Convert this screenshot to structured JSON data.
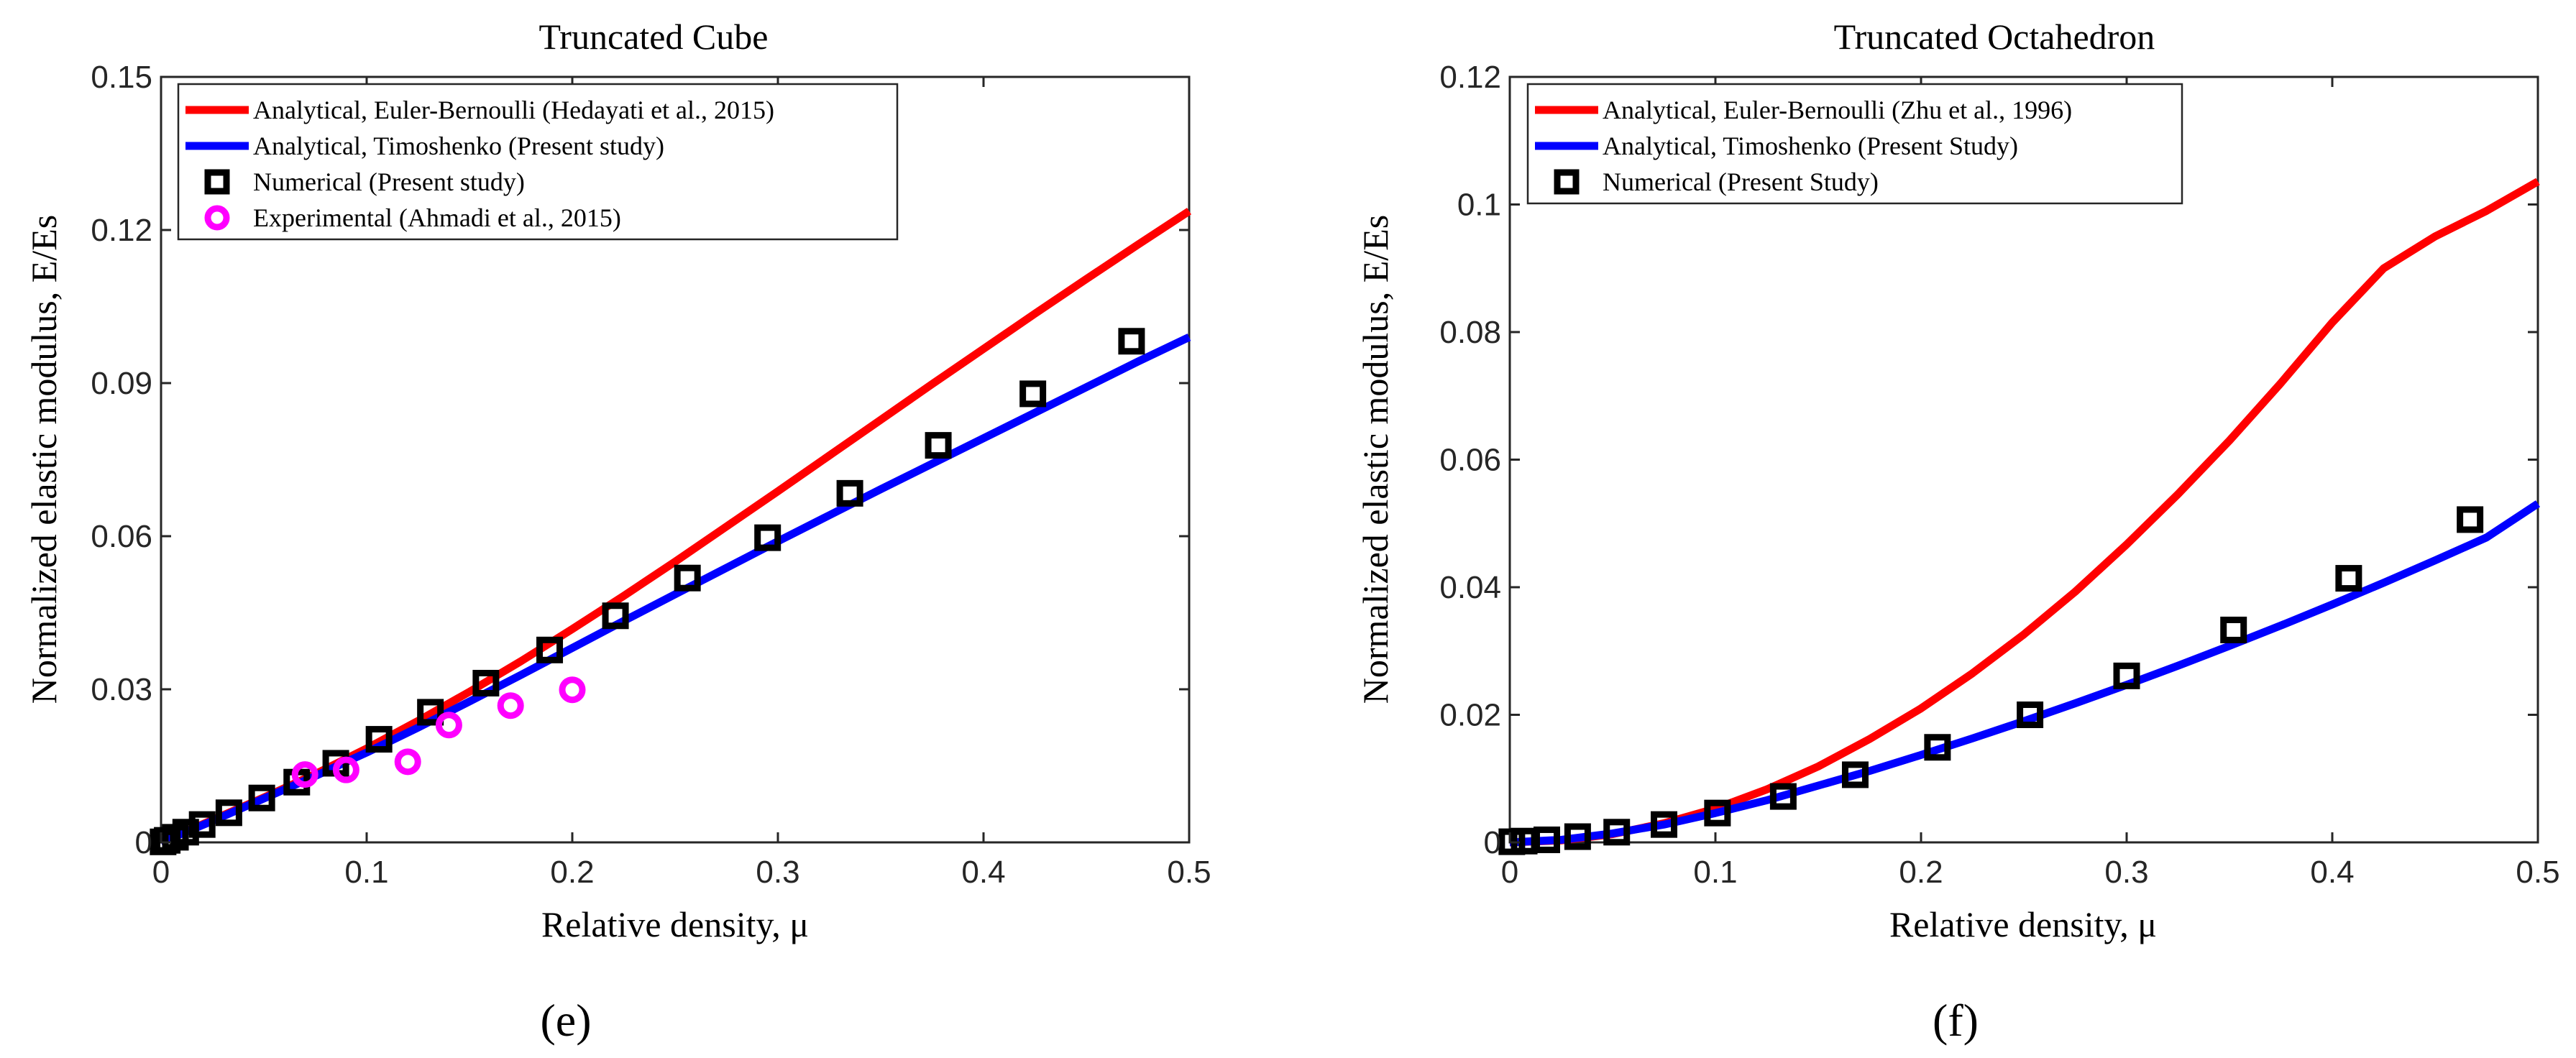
{
  "chart_data": [
    {
      "type": "line",
      "panel": "(e)",
      "title": "Truncated Cube",
      "xlabel": "Relative density, μ",
      "ylabel": "Normalized elastic modulus, E/Es",
      "xlim": [
        0,
        0.5
      ],
      "ylim": [
        0,
        0.15
      ],
      "xticks": [
        0,
        0.1,
        0.2,
        0.3,
        0.4,
        0.5
      ],
      "xtick_labels": [
        "0",
        "0.1",
        "0.2",
        "0.3",
        "0.4",
        "0.5"
      ],
      "yticks": [
        0,
        0.03,
        0.06,
        0.09,
        0.12,
        0.15
      ],
      "ytick_labels": [
        "0",
        "0.03",
        "0.06",
        "0.09",
        "0.12",
        "0.15"
      ],
      "legend_position": "top-left",
      "series": [
        {
          "name": "Analytical, Euler-Bernoulli (Hedayati et al., 2015)",
          "kind": "line",
          "color": "#ff0000",
          "x": [
            0,
            0.025,
            0.05,
            0.075,
            0.1,
            0.125,
            0.15,
            0.175,
            0.2,
            0.225,
            0.25,
            0.275,
            0.3,
            0.325,
            0.35,
            0.375,
            0.4,
            0.425,
            0.45,
            0.475,
            0.5
          ],
          "y": [
            0,
            0.0044,
            0.0088,
            0.0134,
            0.0184,
            0.0238,
            0.0295,
            0.0355,
            0.0418,
            0.0483,
            0.055,
            0.0619,
            0.0688,
            0.0758,
            0.0828,
            0.0898,
            0.0967,
            0.1036,
            0.1104,
            0.1171,
            0.1237
          ]
        },
        {
          "name": "Analytical, Timoshenko (Present study)",
          "kind": "line",
          "color": "#0000ff",
          "x": [
            0,
            0.025,
            0.05,
            0.075,
            0.1,
            0.125,
            0.15,
            0.175,
            0.2,
            0.225,
            0.25,
            0.275,
            0.3,
            0.325,
            0.35,
            0.375,
            0.4,
            0.425,
            0.45,
            0.475,
            0.5
          ],
          "y": [
            0,
            0.0042,
            0.0086,
            0.013,
            0.0176,
            0.0225,
            0.0276,
            0.0328,
            0.0381,
            0.0434,
            0.0486,
            0.0538,
            0.059,
            0.0641,
            0.0692,
            0.0742,
            0.0792,
            0.0842,
            0.0892,
            0.0942,
            0.099
          ]
        },
        {
          "name": "Numerical (Present study)",
          "kind": "scatter",
          "marker": "square",
          "color": "#000000",
          "x": [
            0.001,
            0.003,
            0.007,
            0.012,
            0.02,
            0.033,
            0.049,
            0.066,
            0.085,
            0.106,
            0.131,
            0.158,
            0.189,
            0.221,
            0.256,
            0.295,
            0.335,
            0.378,
            0.424,
            0.472
          ],
          "y": [
            0.0001,
            0.0004,
            0.001,
            0.002,
            0.0035,
            0.0058,
            0.0087,
            0.0118,
            0.0155,
            0.0202,
            0.0255,
            0.0312,
            0.0377,
            0.0444,
            0.0518,
            0.0597,
            0.0684,
            0.0778,
            0.0879,
            0.0982
          ]
        },
        {
          "name": "Experimental (Ahmadi et al., 2015)",
          "kind": "scatter",
          "marker": "circle",
          "color": "#ff00ff",
          "x": [
            0.07,
            0.09,
            0.12,
            0.14,
            0.17,
            0.2
          ],
          "y": [
            0.0133,
            0.0142,
            0.0158,
            0.023,
            0.0268,
            0.0299
          ]
        }
      ]
    },
    {
      "type": "line",
      "panel": "(f)",
      "title": "Truncated Octahedron",
      "xlabel": "Relative density, μ",
      "ylabel": "Normalized elastic modulus, E/Es",
      "xlim": [
        0,
        0.5
      ],
      "ylim": [
        0,
        0.12
      ],
      "xticks": [
        0,
        0.1,
        0.2,
        0.3,
        0.4,
        0.5
      ],
      "xtick_labels": [
        "0",
        "0.1",
        "0.2",
        "0.3",
        "0.4",
        "0.5"
      ],
      "yticks": [
        0,
        0.02,
        0.04,
        0.06,
        0.08,
        0.1,
        0.12
      ],
      "ytick_labels": [
        "0",
        "0.02",
        "0.04",
        "0.06",
        "0.08",
        "0.1",
        "0.12"
      ],
      "legend_position": "top-left",
      "series": [
        {
          "name": "Analytical, Euler-Bernoulli (Zhu et al., 1996)",
          "kind": "line",
          "color": "#ff0000",
          "x": [
            0,
            0.025,
            0.05,
            0.075,
            0.1,
            0.125,
            0.15,
            0.175,
            0.2,
            0.225,
            0.25,
            0.275,
            0.3,
            0.325,
            0.35,
            0.375,
            0.4,
            0.425,
            0.45,
            0.475,
            0.5
          ],
          "y": [
            0,
            0.0003,
            0.0013,
            0.003,
            0.0053,
            0.0083,
            0.0119,
            0.0162,
            0.021,
            0.0265,
            0.0326,
            0.0393,
            0.0467,
            0.0546,
            0.063,
            0.072,
            0.0815,
            0.09,
            0.095,
            0.099,
            0.1036
          ]
        },
        {
          "name": "Analytical, Timoshenko (Present Study)",
          "kind": "line",
          "color": "#0000ff",
          "x": [
            0,
            0.025,
            0.05,
            0.075,
            0.1,
            0.125,
            0.15,
            0.175,
            0.2,
            0.225,
            0.25,
            0.275,
            0.3,
            0.325,
            0.35,
            0.375,
            0.4,
            0.425,
            0.45,
            0.475,
            0.5
          ],
          "y": [
            0,
            0.0004,
            0.0014,
            0.0028,
            0.0046,
            0.0066,
            0.0089,
            0.0112,
            0.0137,
            0.0163,
            0.019,
            0.0218,
            0.0247,
            0.0277,
            0.0308,
            0.034,
            0.0373,
            0.0407,
            0.0442,
            0.0478,
            0.0531
          ]
        },
        {
          "name": "Numerical (Present Study)",
          "kind": "scatter",
          "marker": "square",
          "color": "#000000",
          "x": [
            0.001,
            0.007,
            0.018,
            0.033,
            0.052,
            0.075,
            0.101,
            0.133,
            0.168,
            0.208,
            0.253,
            0.3,
            0.352,
            0.408,
            0.467
          ],
          "y": [
            0.0001,
            0.0002,
            0.0004,
            0.0009,
            0.0016,
            0.0028,
            0.0046,
            0.0072,
            0.0106,
            0.0149,
            0.02,
            0.0261,
            0.0333,
            0.0414,
            0.0506
          ]
        }
      ]
    }
  ]
}
